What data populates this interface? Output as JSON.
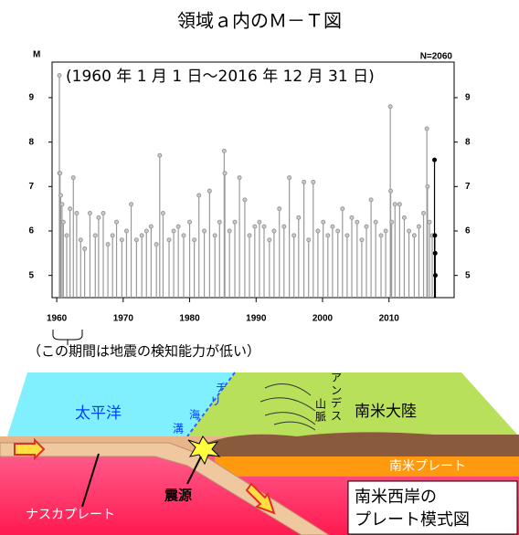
{
  "chart_data": {
    "type": "stem",
    "title": "領域ａ内のＭ－Ｔ図",
    "y_label": "M",
    "count_label": "N=2060",
    "period": "(1960 年 1 月 1 日～2016 年 12 月 31 日)",
    "note": "（この期間は地震の検知能力が低い）",
    "xlim": [
      1959.3,
      2019.8
    ],
    "ylim": [
      4.5,
      9.8
    ],
    "xticks": [
      1960,
      1970,
      1980,
      1990,
      2000,
      2010
    ],
    "yticks": [
      5,
      6,
      7,
      8,
      9
    ],
    "series": [
      {
        "color": "#999999",
        "x": [
          1960.4,
          1960.42,
          1960.5,
          1960.6,
          1960.8,
          1961.0,
          1961.5,
          1962.0,
          1962.5,
          1963.0,
          1963.6,
          1964.2,
          1965.0,
          1965.8,
          1966.3,
          1967.0,
          1967.7,
          1968.4,
          1969.0,
          1969.8,
          1970.5,
          1971.2,
          1972.0,
          1972.8,
          1973.5,
          1974.2,
          1975.0,
          1975.5,
          1976.0,
          1976.9,
          1977.6,
          1978.3,
          1979.1,
          1980.0,
          1980.7,
          1981.4,
          1982.2,
          1983.0,
          1983.8,
          1984.5,
          1985.2,
          1985.3,
          1986.0,
          1986.8,
          1987.5,
          1988.3,
          1989.0,
          1989.8,
          1990.5,
          1991.2,
          1992.0,
          1992.7,
          1993.5,
          1994.2,
          1995.0,
          1995.7,
          1996.4,
          1997.2,
          1997.9,
          1998.6,
          1999.3,
          2000.1,
          2000.8,
          2001.5,
          2002.3,
          2003.0,
          2003.7,
          2004.4,
          2005.2,
          2005.9,
          2006.6,
          2007.3,
          2008.0,
          2008.8,
          2009.5,
          2010.2,
          2010.25,
          2010.4,
          2010.9,
          2011.6,
          2012.3,
          2013.0,
          2013.8,
          2014.5,
          2015.2,
          2015.7,
          2015.8,
          2016.1,
          2016.5
        ],
        "values": [
          9.5,
          7.3,
          7.3,
          6.8,
          6.6,
          6.2,
          5.9,
          6.5,
          7.2,
          6.4,
          5.8,
          5.6,
          6.4,
          5.9,
          6.3,
          6.4,
          5.7,
          5.9,
          6.2,
          5.8,
          6.0,
          6.6,
          5.8,
          5.9,
          6.0,
          6.1,
          5.7,
          7.7,
          6.4,
          5.8,
          6.0,
          6.1,
          5.9,
          6.2,
          5.8,
          6.8,
          6.0,
          6.9,
          5.9,
          6.2,
          7.8,
          7.3,
          6.0,
          6.2,
          7.2,
          6.7,
          5.9,
          6.1,
          6.2,
          6.1,
          5.8,
          6.0,
          6.5,
          6.1,
          7.2,
          5.9,
          6.3,
          7.1,
          5.8,
          7.1,
          6.0,
          6.2,
          5.9,
          6.1,
          6.0,
          6.5,
          5.9,
          6.3,
          6.2,
          5.8,
          6.1,
          6.7,
          6.2,
          5.9,
          6.0,
          8.8,
          6.9,
          6.2,
          6.6,
          6.6,
          6.3,
          6.0,
          5.9,
          6.1,
          6.4,
          8.3,
          7.0,
          6.2,
          5.9
        ]
      },
      {
        "color": "#000000",
        "x": [
          2016.85,
          2016.9,
          2016.95,
          2016.98
        ],
        "values": [
          7.6,
          5.9,
          5.5,
          5.0
        ]
      }
    ]
  },
  "diagram": {
    "ocean": "太平洋",
    "trench": [
      "チ",
      "リ",
      "海",
      "溝"
    ],
    "mountains": [
      "ア",
      "ン",
      "デ",
      "ス"
    ],
    "mountains2": [
      "山",
      "脈"
    ],
    "continent": "南米大陸",
    "sa_plate": "南米プレート",
    "nazca": "ナスカプレート",
    "hypocenter": "震源",
    "caption": [
      "南米西岸の",
      "プレート模式図"
    ]
  }
}
